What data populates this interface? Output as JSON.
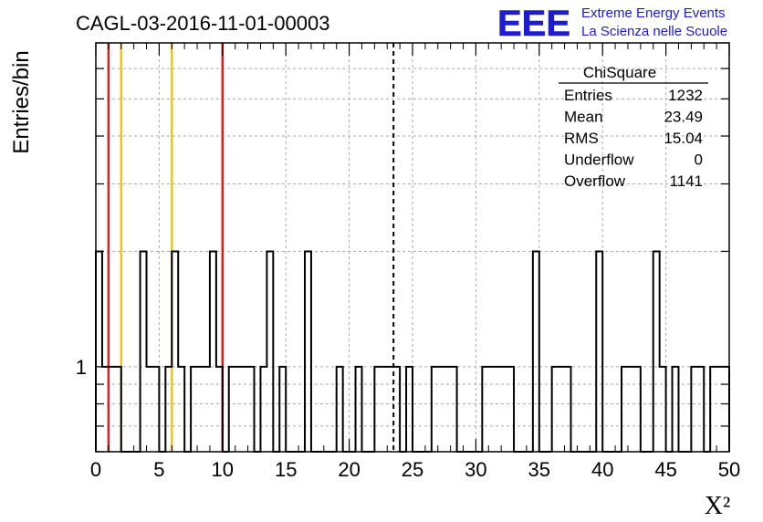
{
  "chart_data": {
    "type": "histogram",
    "title": "CAGL-03-2016-11-01-00003",
    "xlabel": "X²",
    "ylabel": "Entries/bin",
    "xlim": [
      0,
      50
    ],
    "y_scale": "log",
    "ylim": [
      0.6,
      7
    ],
    "grid": true,
    "bin_width": 0.5,
    "x_ticks": [
      "0",
      "5",
      "10",
      "15",
      "20",
      "25",
      "30",
      "35",
      "40",
      "45",
      "50"
    ],
    "y_tick_labels": [
      {
        "value": 1,
        "label": "1"
      }
    ],
    "counts": [
      2,
      1,
      1,
      1,
      0,
      0,
      0,
      2,
      1,
      1,
      0,
      1,
      2,
      1,
      0,
      1,
      1,
      1,
      2,
      1,
      0,
      1,
      1,
      1,
      1,
      0,
      1,
      2,
      0,
      1,
      0,
      0,
      0,
      2,
      0,
      0,
      0,
      0,
      1,
      0,
      0,
      1,
      0,
      0,
      1,
      1,
      1,
      1,
      0,
      1,
      0,
      0,
      0,
      1,
      1,
      1,
      1,
      0,
      0,
      0,
      0,
      1,
      1,
      1,
      1,
      1,
      0,
      0,
      0,
      2,
      0,
      0,
      1,
      1,
      1,
      0,
      0,
      0,
      0,
      2,
      0,
      0,
      0,
      1,
      1,
      1,
      0,
      0,
      2,
      1,
      0,
      1,
      0,
      0,
      1,
      1,
      0,
      1,
      1,
      1
    ],
    "lines": [
      {
        "x": 1,
        "color": "#d42222",
        "style": "solid"
      },
      {
        "x": 2,
        "color": "#f2c418",
        "style": "solid"
      },
      {
        "x": 6,
        "color": "#f2c418",
        "style": "solid"
      },
      {
        "x": 10,
        "color": "#d42222",
        "style": "solid"
      },
      {
        "x": 23.5,
        "color": "#000000",
        "style": "dashed"
      }
    ],
    "stats_box": {
      "title": "ChiSquare",
      "legend_position": "top-right",
      "rows": [
        {
          "label": "Entries",
          "value": "1232"
        },
        {
          "label": "Mean",
          "value": "23.49"
        },
        {
          "label": "RMS",
          "value": "15.04"
        },
        {
          "label": "Underflow",
          "value": "0"
        },
        {
          "label": "Overflow",
          "value": "1141"
        }
      ]
    }
  },
  "logo": {
    "mark": "EEE",
    "line1": "Extreme Energy Events",
    "line2": "La Scienza nelle Scuole",
    "color": "#1d1dcf"
  }
}
